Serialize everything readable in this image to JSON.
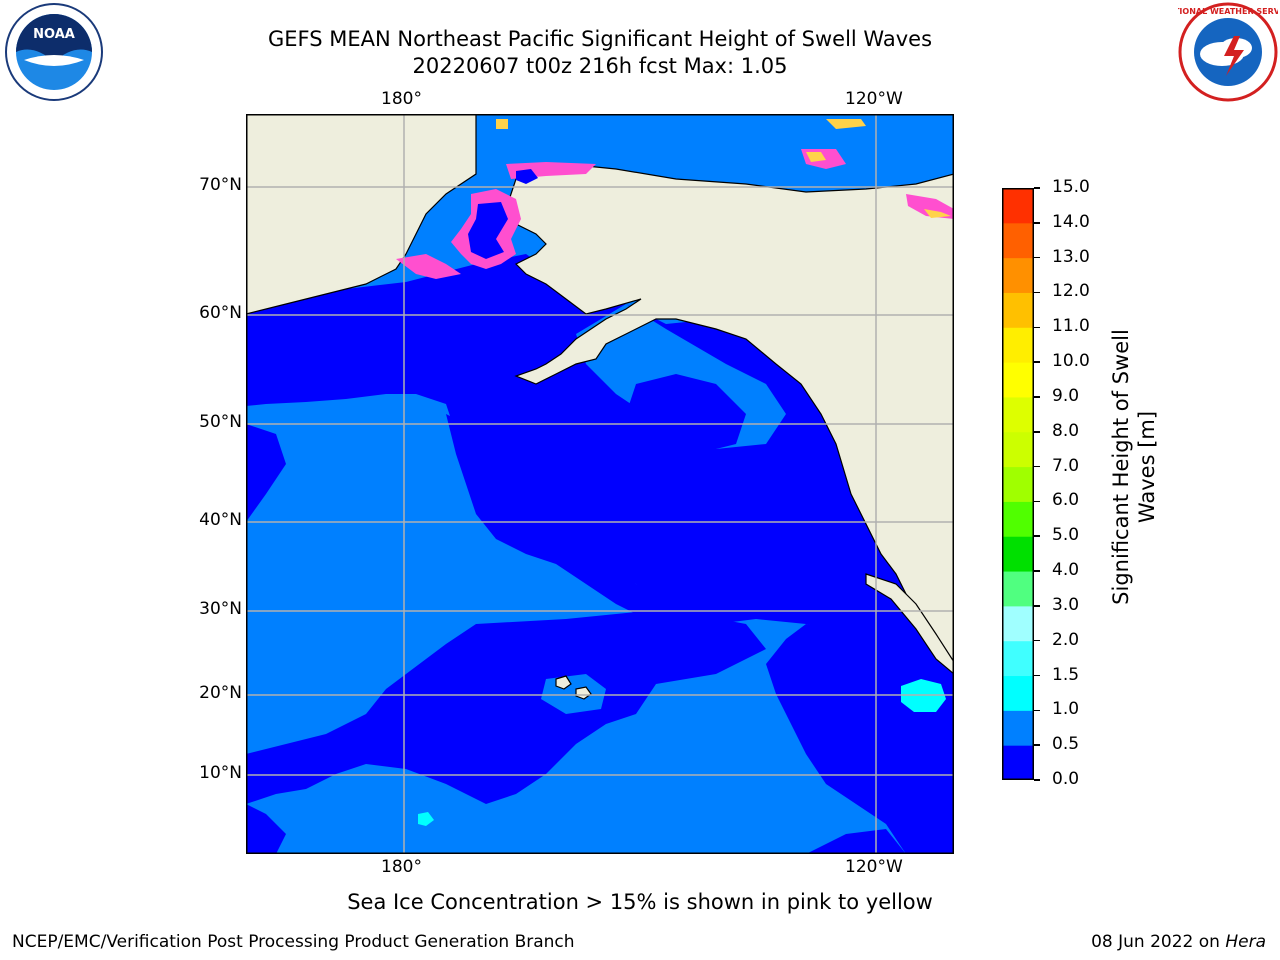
{
  "title": {
    "line1": "GEFS MEAN Northeast Pacific Significant Height of Swell Waves",
    "line2": "20220607 t00z 216h fcst   Max: 1.05"
  },
  "map": {
    "lon_labels": [
      "180°",
      "120°W"
    ],
    "lat_labels": [
      "70°N",
      "60°N",
      "50°N",
      "40°N",
      "30°N",
      "20°N",
      "10°N"
    ],
    "colors": {
      "land": "#eeeedd",
      "class_0_0_5": "#0000ff",
      "class_0_5_1_0": "#0080ff",
      "class_1_0_1_5": "#00ffff",
      "ice_pink": "#ff4fcf",
      "ice_yellow": "#ffd24a",
      "grid": "#b0b0b0"
    }
  },
  "colorbar": {
    "label": "Significant Height of Swell Waves [m]",
    "ticks": [
      "15.0",
      "14.0",
      "13.0",
      "12.0",
      "11.0",
      "10.0",
      "9.0",
      "8.0",
      "7.0",
      "6.0",
      "5.0",
      "4.0",
      "3.0",
      "2.0",
      "1.5",
      "1.0",
      "0.5",
      "0.0"
    ],
    "colors": [
      "#0000ff",
      "#0080ff",
      "#00ffff",
      "#40ffff",
      "#a0ffff",
      "#50ff80",
      "#00e000",
      "#50ff00",
      "#a0ff00",
      "#ccff00",
      "#ddff00",
      "#ffff00",
      "#ffee00",
      "#ffc000",
      "#ff9000",
      "#ff6000",
      "#ff3000"
    ]
  },
  "note": "Sea Ice Concentration > 15% is shown in pink to yellow",
  "footer": {
    "left": "NCEP/EMC/Verification Post Processing Product Generation Branch",
    "date": "08 Jun 2022 on ",
    "host": "Hera"
  },
  "logos": {
    "noaa_text": "NOAA",
    "nws_text": "NATIONAL WEATHER SERVICE"
  }
}
